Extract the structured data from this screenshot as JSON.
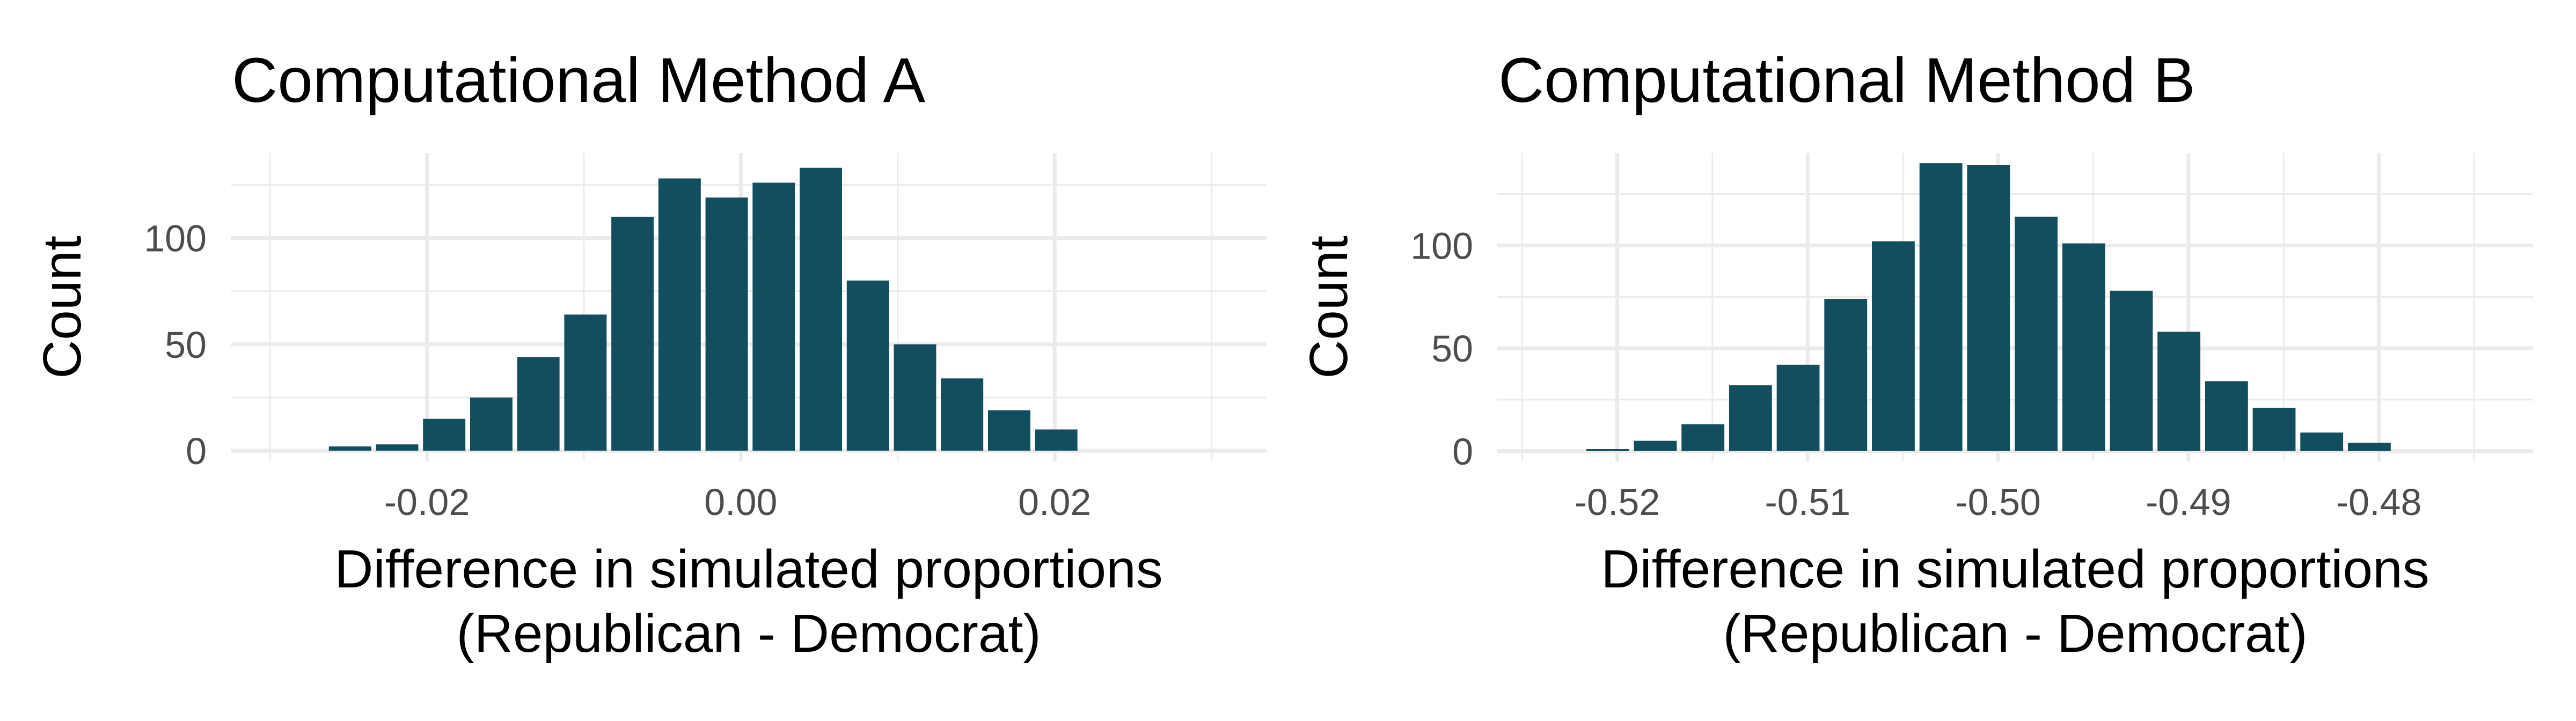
{
  "chart_data": [
    {
      "type": "bar",
      "title": "Computational Method A",
      "xlabel": [
        "Difference in simulated proportions",
        "(Republican - Democrat)"
      ],
      "ylabel": "Count",
      "xlim": [
        -0.0325,
        0.0335
      ],
      "ylim": [
        -5,
        140
      ],
      "x_ticks": [
        {
          "value": -0.02,
          "label": "-0.02"
        },
        {
          "value": 0.0,
          "label": "0.00"
        },
        {
          "value": 0.02,
          "label": "0.02"
        }
      ],
      "y_ticks": [
        {
          "value": 0,
          "label": "0"
        },
        {
          "value": 50,
          "label": "50"
        },
        {
          "value": 100,
          "label": "100"
        }
      ],
      "bin_width": 0.003,
      "bin_centers": [
        -0.0249,
        -0.0219,
        -0.0189,
        -0.0159,
        -0.0129,
        -0.0099,
        -0.0069,
        -0.0039,
        -0.0009,
        0.0021,
        0.0051,
        0.0081,
        0.0111,
        0.0141,
        0.0171,
        0.0201
      ],
      "values": [
        2,
        3,
        15,
        25,
        44,
        64,
        110,
        128,
        119,
        126,
        133,
        80,
        50,
        34,
        19,
        10
      ],
      "bar_color": "#124e5e",
      "grid": true,
      "legend": "none"
    },
    {
      "type": "bar",
      "title": "Computational Method B",
      "xlabel": [
        "Difference in simulated proportions",
        "(Republican - Democrat)"
      ],
      "ylabel": "Count",
      "xlim": [
        -0.5263,
        -0.4719
      ],
      "ylim": [
        -5,
        145
      ],
      "x_ticks": [
        {
          "value": -0.52,
          "label": "-0.52"
        },
        {
          "value": -0.51,
          "label": "-0.51"
        },
        {
          "value": -0.5,
          "label": "-0.50"
        },
        {
          "value": -0.49,
          "label": "-0.49"
        },
        {
          "value": -0.48,
          "label": "-0.48"
        }
      ],
      "y_ticks": [
        {
          "value": 0,
          "label": "0"
        },
        {
          "value": 50,
          "label": "50"
        },
        {
          "value": 100,
          "label": "100"
        }
      ],
      "bin_width": 0.0025,
      "bin_centers": [
        -0.5205,
        -0.518,
        -0.5155,
        -0.513,
        -0.5105,
        -0.508,
        -0.5055,
        -0.503,
        -0.5005,
        -0.498,
        -0.4955,
        -0.493,
        -0.4905,
        -0.488,
        -0.4855,
        -0.483,
        -0.4805
      ],
      "values": [
        1,
        5,
        13,
        32,
        42,
        74,
        102,
        140,
        139,
        114,
        101,
        78,
        58,
        34,
        21,
        9,
        4
      ],
      "bar_color": "#124e5e",
      "grid": true,
      "legend": "none"
    }
  ]
}
